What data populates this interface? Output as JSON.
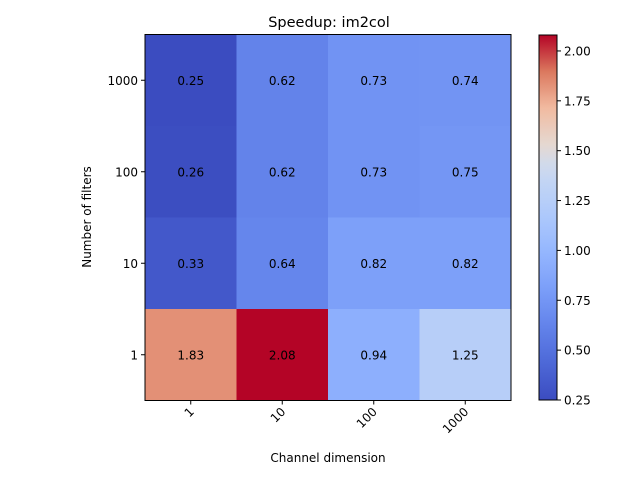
{
  "chart_data": {
    "type": "heatmap",
    "title": "Speedup: im2col",
    "xlabel": "Channel dimension",
    "ylabel": "Number of filters",
    "x_categories": [
      "1",
      "10",
      "100",
      "1000"
    ],
    "y_categories": [
      "1000",
      "100",
      "10",
      "1"
    ],
    "values": [
      [
        0.25,
        0.62,
        0.73,
        0.74
      ],
      [
        0.26,
        0.62,
        0.73,
        0.75
      ],
      [
        0.33,
        0.64,
        0.82,
        0.82
      ],
      [
        1.83,
        2.08,
        0.94,
        1.25
      ]
    ],
    "value_labels": [
      [
        "0.25",
        "0.62",
        "0.73",
        "0.74"
      ],
      [
        "0.26",
        "0.62",
        "0.73",
        "0.75"
      ],
      [
        "0.33",
        "0.64",
        "0.82",
        "0.82"
      ],
      [
        "1.83",
        "2.08",
        "0.94",
        "1.25"
      ]
    ],
    "colormap": "coolwarm",
    "colorbar": {
      "range": [
        0.25,
        2.08
      ],
      "ticks": [
        "0.25",
        "0.50",
        "0.75",
        "1.00",
        "1.25",
        "1.50",
        "1.75",
        "2.00"
      ]
    }
  }
}
